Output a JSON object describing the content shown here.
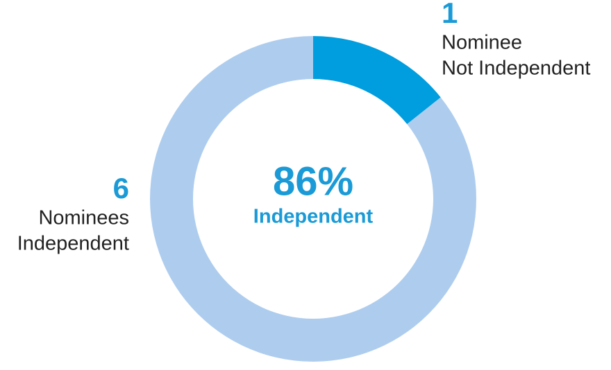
{
  "chart_data": {
    "type": "donut",
    "categories": [
      [
        "Nominee",
        "Not Independent"
      ],
      [
        "Nominees",
        "Independent"
      ]
    ],
    "values": [
      1,
      6
    ],
    "colors": [
      "#009ddf",
      "#aecdee"
    ],
    "center_label": "86%",
    "center_text": "Independent"
  }
}
